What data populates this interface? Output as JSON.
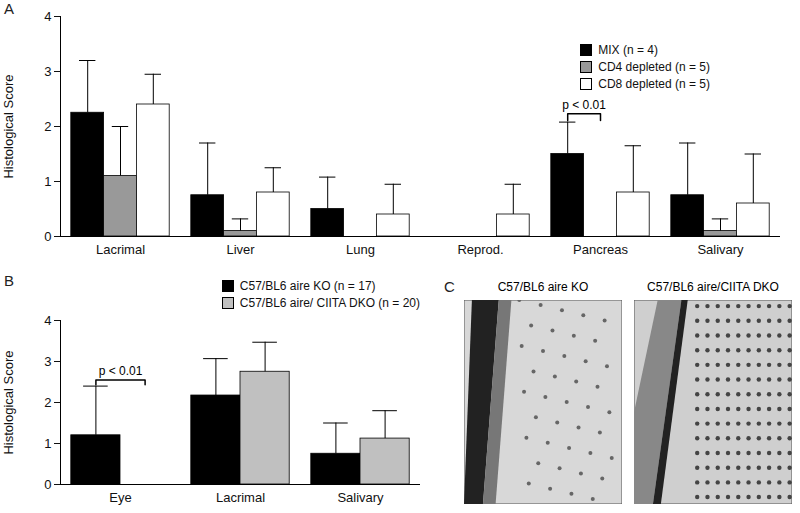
{
  "chart_data": [
    {
      "type": "bar",
      "title": "A",
      "categories": [
        "Lacrimal",
        "Liver",
        "Lung",
        "Reprod.",
        "Pancreas",
        "Salivary"
      ],
      "y_label": "Histological Score",
      "ylim": [
        0,
        4
      ],
      "yticks": [
        0,
        1,
        2,
        3,
        4
      ],
      "grid": false,
      "legend": "top-right",
      "series": [
        {
          "name": "MIX (n = 4)",
          "color": "#000000",
          "values": [
            2.25,
            0.75,
            0.5,
            0,
            1.5,
            0.75
          ],
          "errors": [
            0.95,
            0.95,
            0.58,
            0,
            0.58,
            0.95
          ]
        },
        {
          "name": "CD4 depleted (n = 5)",
          "color": "#999999",
          "values": [
            1.1,
            0.1,
            0,
            0,
            0,
            0.1
          ],
          "errors": [
            0.9,
            0.22,
            0,
            0,
            0,
            0.22
          ]
        },
        {
          "name": "CD8 depleted (n = 5)",
          "color": "#ffffff",
          "values": [
            2.4,
            0.8,
            0.4,
            0.4,
            0.8,
            0.6
          ],
          "errors": [
            0.55,
            0.45,
            0.55,
            0.55,
            0.85,
            0.9
          ]
        }
      ],
      "annotations": [
        {
          "text": "p < 0.01",
          "category": "Pancreas",
          "between": [
            "MIX (n = 4)",
            "CD4 depleted (n = 5)"
          ]
        }
      ]
    },
    {
      "type": "bar",
      "title": "B",
      "categories": [
        "Eye",
        "Lacrimal",
        "Salivary"
      ],
      "y_label": "Histological Score",
      "ylim": [
        0,
        4
      ],
      "yticks": [
        0,
        1,
        2,
        3,
        4
      ],
      "grid": false,
      "legend": "top-right",
      "series": [
        {
          "name": "C57/BL6 aire KO (n = 17)",
          "color": "#000000",
          "values": [
            1.2,
            2.17,
            0.75
          ],
          "errors": [
            1.2,
            0.9,
            0.75
          ]
        },
        {
          "name": "C57/BL6 aire/ CIITA DKO (n = 20)",
          "color": "#c0c0c0",
          "values": [
            0,
            2.75,
            1.12
          ],
          "errors": [
            0,
            0.72,
            0.68
          ]
        }
      ],
      "annotations": [
        {
          "text": "p < 0.01",
          "category": "Eye",
          "between": [
            "C57/BL6 aire KO (n = 17)",
            "C57/BL6 aire/ CIITA DKO (n = 20)"
          ]
        }
      ]
    },
    {
      "type": "image",
      "title": "C",
      "panels": [
        "C57/BL6 aire KO",
        "C57/BL6 aire/CIITA DKO"
      ]
    }
  ]
}
